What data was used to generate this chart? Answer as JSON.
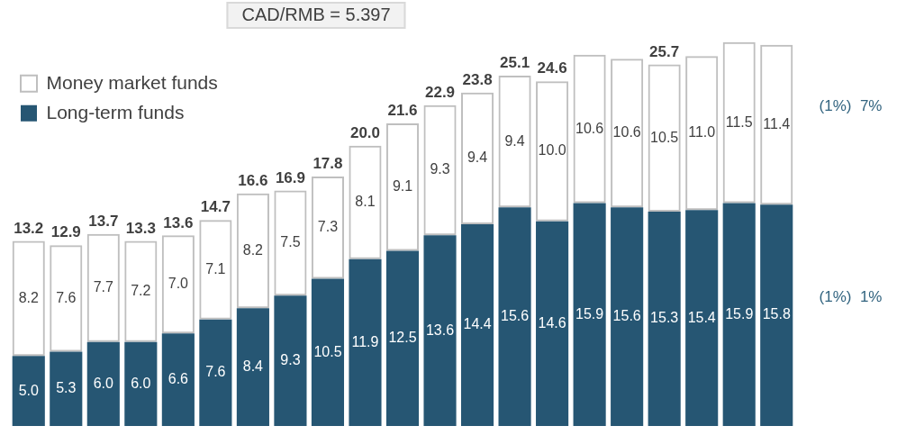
{
  "chart_data": {
    "type": "bar",
    "stacked": true,
    "categories": [
      null,
      null,
      null,
      null,
      null,
      null,
      null,
      null,
      null,
      null,
      null,
      null,
      null,
      null,
      null,
      null,
      null,
      null,
      null,
      null,
      null
    ],
    "series": [
      {
        "name": "Long-term funds",
        "color": "#265673",
        "values": [
          5.0,
          5.3,
          6.0,
          6.0,
          6.6,
          7.6,
          8.4,
          9.3,
          10.5,
          11.9,
          12.5,
          13.6,
          14.4,
          15.6,
          14.6,
          15.9,
          15.6,
          15.3,
          15.4,
          15.9,
          15.8
        ],
        "value_labels": [
          "5.0",
          "5.3",
          "6.0",
          "6.0",
          "6.6",
          "7.6",
          "8.4",
          "9.3",
          "10.5",
          "11.9",
          "12.5",
          "13.6",
          "14.4",
          "15.6",
          "14.6",
          "15.9",
          "15.6",
          "15.3",
          "15.4",
          "15.9",
          "15.8"
        ]
      },
      {
        "name": "Money market funds",
        "color": "#bfbfbf",
        "values": [
          8.2,
          7.6,
          7.7,
          7.2,
          7.0,
          7.1,
          8.2,
          7.5,
          7.3,
          8.1,
          9.1,
          9.3,
          9.4,
          9.4,
          10.0,
          10.6,
          10.6,
          10.5,
          11.0,
          11.5,
          11.4
        ],
        "value_labels": [
          "8.2",
          "7.6",
          "7.7",
          "7.2",
          "7.0",
          "7.1",
          "8.2",
          "7.5",
          "7.3",
          "8.1",
          "9.1",
          "9.3",
          "9.4",
          "9.4",
          "10.0",
          "10.6",
          "10.6",
          "10.5",
          "11.0",
          "11.5",
          "11.4"
        ]
      }
    ],
    "totals": [
      "13.2",
      "12.9",
      "13.7",
      "13.3",
      "13.6",
      "14.7",
      "16.6",
      "16.9",
      "17.8",
      "20.0",
      "21.6",
      "22.9",
      "23.8",
      "25.1",
      "24.6",
      null,
      null,
      "25.7",
      null,
      null,
      null
    ],
    "annotations": [
      "CAD/RMB = 5.397",
      "(1%)  7%",
      "(1%)  1%"
    ],
    "legend": "top left",
    "grid": false,
    "tick_labels": false
  }
}
